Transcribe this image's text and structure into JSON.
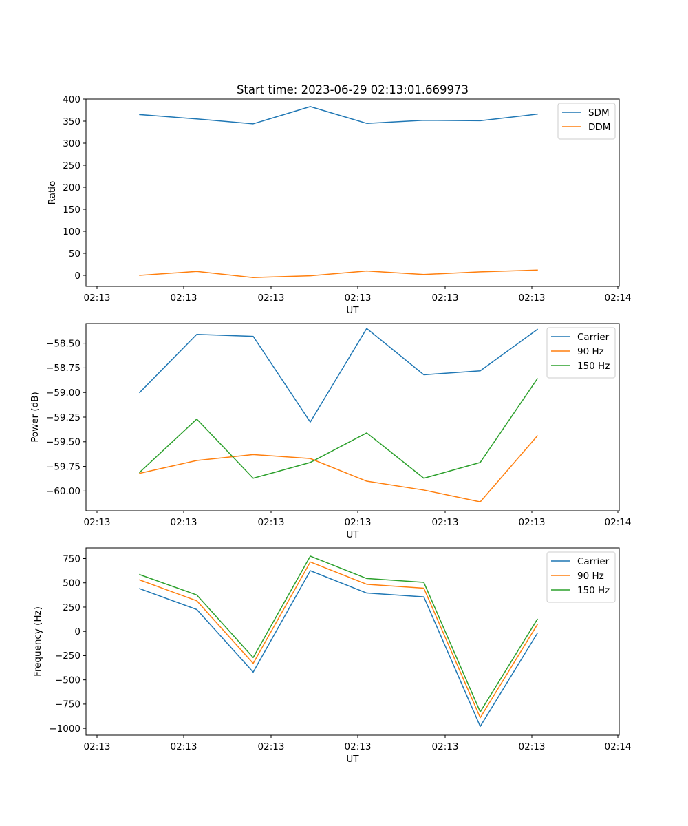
{
  "chart_data": [
    {
      "type": "line",
      "title": "Start time: 2023-06-29 02:13:01.669973",
      "xlabel": "UT",
      "ylabel": "Ratio",
      "xtick_labels": [
        "02:13",
        "02:13",
        "02:13",
        "02:13",
        "02:13",
        "02:13",
        "02:14"
      ],
      "yticks": [
        0,
        50,
        100,
        150,
        200,
        250,
        300,
        350,
        400
      ],
      "ylim": [
        -25,
        400
      ],
      "legend_position": "upper right",
      "grid": false,
      "x": [
        1,
        2,
        3,
        4,
        5,
        6,
        7,
        8
      ],
      "series": [
        {
          "name": "SDM",
          "color": "#1f77b4",
          "values": [
            365,
            355,
            344,
            383,
            345,
            352,
            351,
            366
          ]
        },
        {
          "name": "DDM",
          "color": "#ff7f0e",
          "values": [
            0,
            9,
            -5,
            -1,
            10,
            2,
            8,
            12
          ]
        }
      ]
    },
    {
      "type": "line",
      "title": "",
      "xlabel": "UT",
      "ylabel": "Power (dB)",
      "xtick_labels": [
        "02:13",
        "02:13",
        "02:13",
        "02:13",
        "02:13",
        "02:13",
        "02:14"
      ],
      "yticks": [
        -60.0,
        -59.75,
        -59.5,
        -59.25,
        -59.0,
        -58.75,
        -58.5
      ],
      "ytick_labels": [
        "−60.00",
        "−59.75",
        "−59.50",
        "−59.25",
        "−59.00",
        "−58.75",
        "−58.50"
      ],
      "ylim": [
        -60.2,
        -58.3
      ],
      "legend_position": "upper right",
      "grid": false,
      "x": [
        1,
        2,
        3,
        4,
        5,
        6,
        7,
        8
      ],
      "series": [
        {
          "name": "Carrier",
          "color": "#1f77b4",
          "values": [
            -59.0,
            -58.41,
            -58.43,
            -59.3,
            -58.35,
            -58.82,
            -58.78,
            -58.36
          ]
        },
        {
          "name": "90 Hz",
          "color": "#ff7f0e",
          "values": [
            -59.82,
            -59.69,
            -59.63,
            -59.67,
            -59.9,
            -59.99,
            -60.11,
            -59.44
          ]
        },
        {
          "name": "150 Hz",
          "color": "#2ca02c",
          "values": [
            -59.81,
            -59.27,
            -59.87,
            -59.71,
            -59.41,
            -59.87,
            -59.71,
            -58.86
          ]
        }
      ]
    },
    {
      "type": "line",
      "title": "",
      "xlabel": "UT",
      "ylabel": "Frequency (Hz)",
      "xtick_labels": [
        "02:13",
        "02:13",
        "02:13",
        "02:13",
        "02:13",
        "02:13",
        "02:14"
      ],
      "yticks": [
        -1000,
        -750,
        -500,
        -250,
        0,
        250,
        500,
        750
      ],
      "ytick_labels": [
        "−1000",
        "−750",
        "−500",
        "−250",
        "0",
        "250",
        "500",
        "750"
      ],
      "ylim": [
        -1070,
        860
      ],
      "legend_position": "upper right",
      "grid": false,
      "x": [
        1,
        2,
        3,
        4,
        5,
        6,
        7,
        8
      ],
      "series": [
        {
          "name": "Carrier",
          "color": "#1f77b4",
          "values": [
            440,
            225,
            -420,
            625,
            395,
            355,
            -980,
            -20
          ]
        },
        {
          "name": "90 Hz",
          "color": "#ff7f0e",
          "values": [
            530,
            315,
            -330,
            715,
            485,
            445,
            -890,
            70
          ]
        },
        {
          "name": "150 Hz",
          "color": "#2ca02c",
          "values": [
            585,
            375,
            -270,
            775,
            545,
            505,
            -830,
            125
          ]
        }
      ]
    }
  ]
}
